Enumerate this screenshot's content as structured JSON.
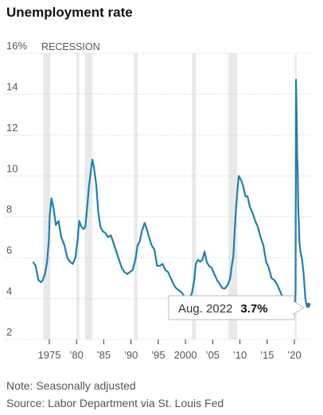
{
  "chart_data": {
    "type": "line",
    "title": "Unemployment rate",
    "recession_label": "RECESSION",
    "y_ticks": [
      {
        "value": 16,
        "label": "16%"
      },
      {
        "value": 14,
        "label": "14"
      },
      {
        "value": 12,
        "label": "12"
      },
      {
        "value": 10,
        "label": "10"
      },
      {
        "value": 8,
        "label": "8"
      },
      {
        "value": 6,
        "label": "6"
      },
      {
        "value": 4,
        "label": "4"
      },
      {
        "value": 2,
        "label": "2"
      }
    ],
    "x_ticks": [
      {
        "value": 1975,
        "label": "1975"
      },
      {
        "value": 1980,
        "label": "’80"
      },
      {
        "value": 1985,
        "label": "’85"
      },
      {
        "value": 1990,
        "label": "’90"
      },
      {
        "value": 1995,
        "label": "’95"
      },
      {
        "value": 2000,
        "label": "2000"
      },
      {
        "value": 2005,
        "label": "’05"
      },
      {
        "value": 2010,
        "label": "’10"
      },
      {
        "value": 2015,
        "label": "’15"
      },
      {
        "value": 2020,
        "label": "’20"
      }
    ],
    "ylim": [
      2,
      16
    ],
    "xlim": [
      1971.5,
      2023.2
    ],
    "recessions": [
      [
        1973.9,
        1975.2
      ],
      [
        1980.0,
        1980.5
      ],
      [
        1981.5,
        1982.9
      ],
      [
        1990.6,
        1991.2
      ],
      [
        2001.2,
        2001.9
      ],
      [
        2007.9,
        2009.5
      ],
      [
        2020.1,
        2020.4
      ]
    ],
    "series": [
      {
        "color": "#1f7fae",
        "x": [
          1972.0,
          1972.5,
          1973.0,
          1973.5,
          1973.8,
          1974.2,
          1974.6,
          1974.9,
          1975.1,
          1975.4,
          1975.8,
          1976.2,
          1976.7,
          1977.2,
          1977.8,
          1978.3,
          1978.8,
          1979.3,
          1979.8,
          1980.2,
          1980.5,
          1980.9,
          1981.3,
          1981.6,
          1981.9,
          1982.3,
          1982.6,
          1982.9,
          1983.2,
          1983.6,
          1984.0,
          1984.4,
          1984.8,
          1985.3,
          1985.8,
          1986.3,
          1986.8,
          1987.3,
          1987.8,
          1988.3,
          1988.8,
          1989.3,
          1989.8,
          1990.3,
          1990.8,
          1991.2,
          1991.6,
          1992.0,
          1992.5,
          1992.9,
          1993.3,
          1993.8,
          1994.3,
          1994.8,
          1995.3,
          1995.8,
          1996.3,
          1996.8,
          1997.3,
          1997.8,
          1998.3,
          1998.8,
          1999.3,
          1999.8,
          2000.3,
          2000.8,
          2001.2,
          2001.6,
          2001.9,
          2002.3,
          2002.7,
          2003.1,
          2003.5,
          2003.9,
          2004.3,
          2004.8,
          2005.3,
          2005.8,
          2006.3,
          2006.8,
          2007.3,
          2007.8,
          2008.2,
          2008.5,
          2008.8,
          2009.0,
          2009.3,
          2009.6,
          2009.8,
          2010.2,
          2010.6,
          2011.0,
          2011.4,
          2011.8,
          2012.3,
          2012.8,
          2013.3,
          2013.8,
          2014.3,
          2014.8,
          2015.3,
          2015.8,
          2016.3,
          2016.8,
          2017.3,
          2017.8,
          2018.3,
          2018.8,
          2019.3,
          2019.8,
          2020.1,
          2020.2,
          2020.3,
          2020.4,
          2020.5,
          2020.6,
          2020.7,
          2020.8,
          2020.9,
          2021.1,
          2021.4,
          2021.7,
          2022.0,
          2022.3,
          2022.6,
          2022.8
        ],
        "values": [
          5.8,
          5.6,
          4.9,
          4.8,
          4.9,
          5.2,
          5.8,
          6.8,
          8.1,
          8.9,
          8.4,
          7.6,
          7.8,
          7.0,
          6.6,
          6.0,
          5.8,
          5.7,
          6.0,
          6.9,
          7.8,
          7.5,
          7.4,
          7.5,
          8.3,
          9.5,
          10.2,
          10.8,
          10.4,
          9.6,
          8.2,
          7.5,
          7.3,
          7.2,
          7.0,
          7.1,
          6.7,
          6.3,
          5.9,
          5.5,
          5.3,
          5.2,
          5.3,
          5.4,
          5.9,
          6.6,
          6.8,
          7.3,
          7.7,
          7.4,
          7.0,
          6.6,
          6.4,
          5.6,
          5.6,
          5.7,
          5.4,
          5.3,
          5.0,
          4.7,
          4.5,
          4.4,
          4.3,
          4.1,
          3.9,
          4.0,
          4.3,
          4.9,
          5.7,
          5.9,
          5.8,
          5.9,
          6.3,
          5.8,
          5.6,
          5.5,
          5.2,
          4.9,
          4.7,
          4.5,
          4.5,
          4.7,
          5.0,
          5.6,
          6.1,
          7.2,
          8.5,
          9.5,
          10.0,
          9.8,
          9.5,
          9.0,
          9.0,
          8.5,
          8.2,
          7.8,
          7.5,
          7.0,
          6.6,
          5.8,
          5.5,
          5.0,
          4.9,
          4.7,
          4.4,
          4.1,
          3.9,
          3.7,
          3.6,
          3.5,
          3.5,
          4.4,
          14.7,
          13.2,
          11.1,
          10.2,
          8.4,
          7.8,
          6.8,
          6.3,
          5.9,
          5.2,
          4.0,
          3.6,
          3.6,
          3.7
        ]
      }
    ],
    "callout": {
      "label": "Aug. 2022",
      "value": "3.7%",
      "x": 2022.6,
      "y": 3.7
    },
    "notes": [
      "Note: Seasonally adjusted",
      "Source: Labor Department via St. Louis Fed"
    ],
    "grid": true
  }
}
